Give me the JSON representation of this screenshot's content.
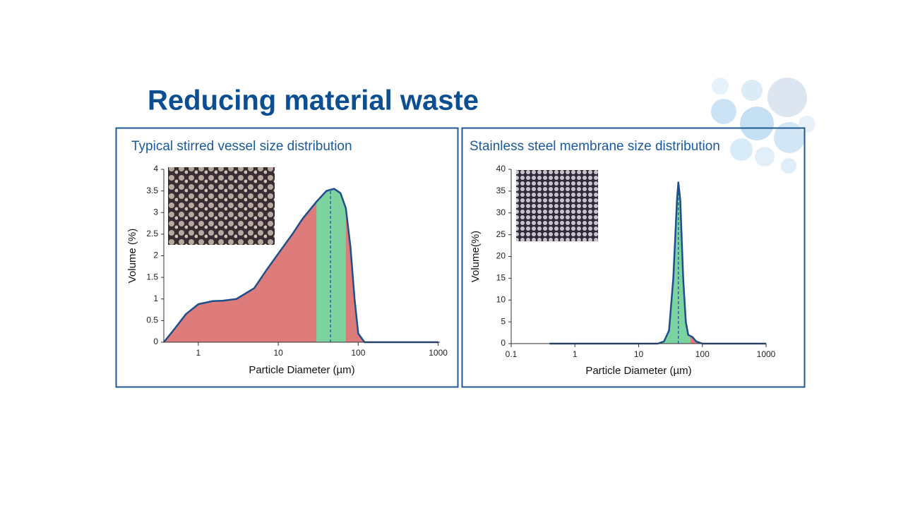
{
  "slide": {
    "title": "Reducing material waste"
  },
  "chart_data": [
    {
      "type": "area",
      "title": "Typical stirred vessel size distribution",
      "xlabel": "Particle Diameter (µm)",
      "ylabel": "Volume (%)",
      "log_x": true,
      "x": [
        0.37,
        0.5,
        0.7,
        1,
        1.5,
        2,
        3,
        5,
        7,
        10,
        15,
        20,
        30,
        40,
        50,
        60,
        70,
        80,
        90,
        100,
        120,
        1000
      ],
      "series": [
        {
          "color": "#de7b7b",
          "values": [
            0,
            0.3,
            0.65,
            0.88,
            0.95,
            0.96,
            1.0,
            1.25,
            1.65,
            2.05,
            2.5,
            2.85,
            3.25,
            3.5,
            3.55,
            3.45,
            3.1,
            2.2,
            1.0,
            0.2,
            0,
            0
          ]
        }
      ],
      "line_color": "#1f4e8c",
      "bands": [
        {
          "from": 30,
          "to": 70,
          "color": "#7dd3a0"
        }
      ],
      "median": 45,
      "xlim": [
        0.37,
        1050
      ],
      "xticks": [
        1,
        10,
        100,
        1000
      ],
      "ylim": [
        0,
        4
      ],
      "yticks": [
        0,
        0.5,
        1,
        1.5,
        2,
        2.5,
        3,
        3.5,
        4
      ]
    },
    {
      "type": "area",
      "title": "Stainless steel membrane size distribution",
      "xlabel": "Particle Diameter (µm)",
      "ylabel": "Volume(%)",
      "log_x": true,
      "x": [
        0.4,
        20,
        25,
        30,
        35,
        40,
        42,
        45,
        50,
        55,
        60,
        70,
        80,
        100,
        1000
      ],
      "series": [
        {
          "color": "#de7b7b",
          "values": [
            0,
            0,
            0.5,
            3,
            15,
            33,
            37,
            33,
            15,
            5,
            2,
            1.5,
            0.5,
            0,
            0
          ]
        }
      ],
      "line_color": "#1f4e8c",
      "bands": [
        {
          "from": 20,
          "to": 65,
          "color": "#7dd3a0"
        }
      ],
      "median": 42,
      "xlim": [
        0.1,
        1000
      ],
      "xticks": [
        0.1,
        1,
        10,
        100,
        1000
      ],
      "ylim": [
        0,
        40
      ],
      "yticks": [
        0,
        5,
        10,
        15,
        20,
        25,
        30,
        35,
        40
      ]
    }
  ]
}
